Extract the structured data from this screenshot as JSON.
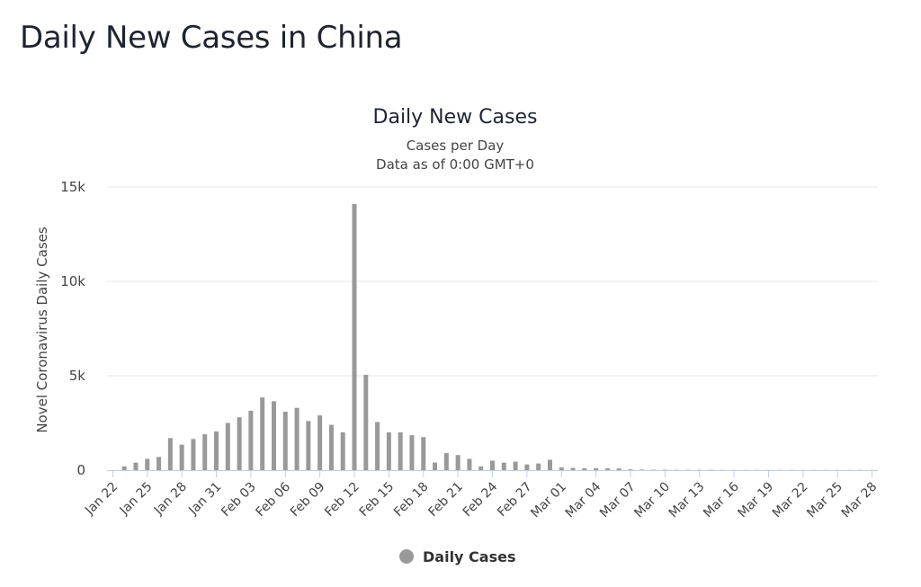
{
  "page": {
    "title": "Daily New Cases in China"
  },
  "chart_data": {
    "type": "bar",
    "title": "Daily New Cases",
    "subtitle_lines": [
      "Cases per Day",
      "Data as of 0:00 GMT+0"
    ],
    "xlabel": "",
    "ylabel": "Novel Coronavirus Daily Cases",
    "ylim": [
      0,
      15000
    ],
    "yticks": [
      0,
      5000,
      10000,
      15000
    ],
    "ytick_labels": [
      "0",
      "5k",
      "10k",
      "15k"
    ],
    "xtick_labels": [
      "Jan 22",
      "Jan 25",
      "Jan 28",
      "Jan 31",
      "Feb 03",
      "Feb 06",
      "Feb 09",
      "Feb 12",
      "Feb 15",
      "Feb 18",
      "Feb 21",
      "Feb 24",
      "Feb 27",
      "Mar 01",
      "Mar 04",
      "Mar 07",
      "Mar 10",
      "Mar 13",
      "Mar 16",
      "Mar 19",
      "Mar 22",
      "Mar 25",
      "Mar 28"
    ],
    "grid": true,
    "legend_position": "bottom-center",
    "bar_color": "#999999",
    "series": [
      {
        "name": "Daily Cases",
        "values": [
          0,
          200,
          400,
          600,
          700,
          1700,
          1350,
          1650,
          1900,
          2050,
          2500,
          2800,
          3150,
          3850,
          3650,
          3100,
          3300,
          2600,
          2900,
          2400,
          2000,
          14100,
          5050,
          2550,
          2000,
          2000,
          1850,
          1750,
          400,
          900,
          800,
          600,
          200,
          500,
          400,
          450,
          300,
          350,
          550,
          150,
          120,
          100,
          100,
          100,
          90,
          40,
          30,
          20,
          20,
          15,
          15,
          15,
          15,
          10,
          10,
          10,
          10,
          10,
          10,
          10,
          10,
          10,
          10,
          10,
          10,
          10,
          10
        ]
      }
    ]
  }
}
